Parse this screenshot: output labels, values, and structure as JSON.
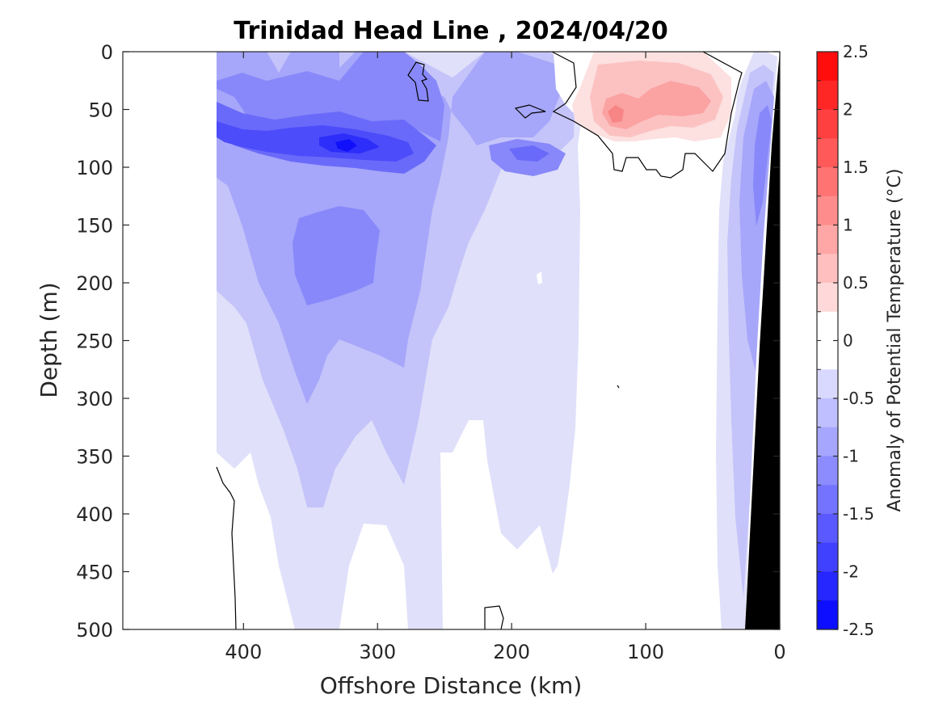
{
  "chart_data": {
    "type": "heatmap",
    "subtype": "filled-contour-section",
    "title": "Trinidad Head Line , 2024/04/20",
    "xlabel": "Offshore Distance (km)",
    "ylabel": "Depth (m)",
    "xlim": [
      490,
      0
    ],
    "ylim": [
      0,
      500
    ],
    "x_reversed": true,
    "y_reversed": true,
    "x_ticks": [
      400,
      300,
      200,
      100,
      0
    ],
    "x_tick_labels": [
      "400",
      "300",
      "200",
      "100",
      "0"
    ],
    "y_ticks": [
      0,
      50,
      100,
      150,
      200,
      250,
      300,
      350,
      400,
      450,
      500
    ],
    "y_tick_labels": [
      "0",
      "50",
      "100",
      "150",
      "200",
      "250",
      "300",
      "350",
      "400",
      "450",
      "500"
    ],
    "grid": false,
    "colorbar": {
      "label": "Anomaly of Potential Temperature (°C)",
      "range": [
        -2.5,
        2.5
      ],
      "step": 0.25,
      "ticks": [
        2.5,
        2,
        1.5,
        1,
        0.5,
        0,
        -0.5,
        -1,
        -1.5,
        -2,
        -2.5
      ],
      "tick_labels": [
        "2.5",
        "2",
        "1.5",
        "1",
        "0.5",
        "0",
        "-0.5",
        "-1",
        "-1.5",
        "-2",
        "-2.5"
      ],
      "low_color": "#0000ff",
      "mid_color": "#ffffff",
      "high_color": "#ff0000"
    },
    "zero_contour_color": "#000000",
    "bathymetry_color": "#000000",
    "data_extent_km": [
      418,
      0
    ],
    "regions": [
      {
        "name": "nearshore-warm-core",
        "center_km": 120,
        "center_depth_m": 55,
        "anomaly": 1.0
      },
      {
        "name": "secondary-warm-lobe",
        "center_km": 75,
        "center_depth_m": 45,
        "anomaly": 0.75
      },
      {
        "name": "subsurface-cold-core",
        "center_km": 320,
        "center_depth_m": 82,
        "anomaly": -2.0
      },
      {
        "name": "mid-depth-cold-pool",
        "center_km": 335,
        "center_depth_m": 175,
        "anomaly": -1.25
      },
      {
        "name": "offshore-cold-eddy",
        "center_km": 190,
        "center_depth_m": 88,
        "anomaly": -1.5
      },
      {
        "name": "slope-cold-band",
        "center_km": 22,
        "center_depth_m": 150,
        "anomaly": -1.0
      }
    ]
  }
}
